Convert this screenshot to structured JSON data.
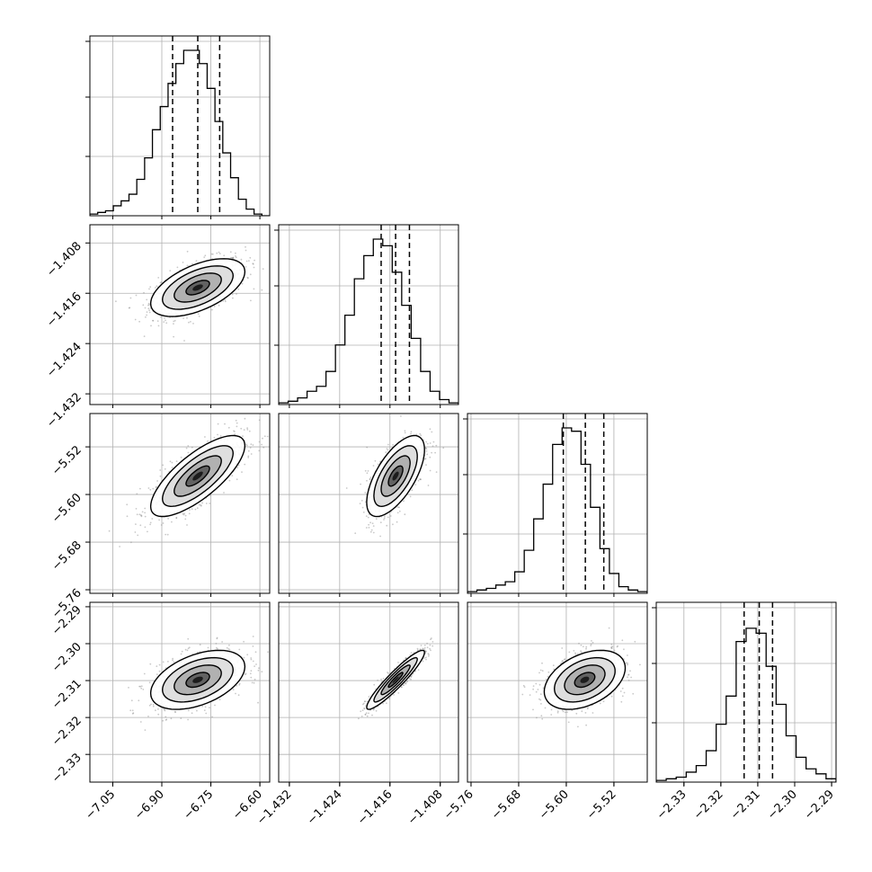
{
  "chart_data": {
    "type": "corner",
    "grid": true,
    "parameters": [
      {
        "range": [
          -7.12,
          -6.57
        ],
        "ticks": [
          "−7.05",
          "−6.90",
          "−6.75",
          "−6.60"
        ],
        "tick_values": [
          -7.05,
          -6.9,
          -6.75,
          -6.6
        ],
        "quantiles": [
          -6.867,
          -6.79,
          -6.723
        ],
        "mean": -6.79,
        "sigma": 0.072
      },
      {
        "range": [
          -1.4337,
          -1.4051
        ],
        "ticks": [
          "−1.432",
          "−1.424",
          "−1.416",
          "−1.408"
        ],
        "tick_values": [
          -1.432,
          -1.424,
          -1.416,
          -1.408
        ],
        "quantiles": [
          -1.4174,
          -1.4151,
          -1.4129
        ],
        "mean": -1.4151,
        "sigma": 0.0023
      },
      {
        "range": [
          -5.766,
          -5.464
        ],
        "ticks": [
          "−5.76",
          "−5.68",
          "−5.60",
          "−5.52"
        ],
        "tick_values": [
          -5.76,
          -5.68,
          -5.6,
          -5.52
        ],
        "quantiles": [
          -5.605,
          -5.568,
          -5.537
        ],
        "mean": -5.569,
        "sigma": 0.034
      },
      {
        "range": [
          -2.3375,
          -2.2888
        ],
        "ticks": [
          "−2.33",
          "−2.32",
          "−2.31",
          "−2.30",
          "−2.29"
        ],
        "tick_values": [
          -2.33,
          -2.32,
          -2.31,
          -2.3,
          -2.29
        ],
        "quantiles": [
          -2.3137,
          -2.3096,
          -2.306
        ],
        "mean": -2.3098,
        "sigma": 0.004
      }
    ],
    "histograms": [
      [
        1,
        2,
        3,
        6,
        9,
        13,
        22,
        35,
        52,
        66,
        80,
        92,
        100,
        100,
        92,
        77,
        57,
        38,
        23,
        10,
        4,
        1,
        0
      ],
      [
        1,
        2,
        4,
        8,
        11,
        20,
        36,
        54,
        76,
        90,
        100,
        96,
        80,
        60,
        40,
        20,
        8,
        3,
        1
      ],
      [
        1,
        2,
        3,
        5,
        7,
        13,
        26,
        45,
        66,
        90,
        100,
        98,
        78,
        52,
        27,
        12,
        4,
        2,
        1
      ],
      [
        1,
        2,
        3,
        6,
        10,
        19,
        35,
        52,
        85,
        93,
        90,
        70,
        47,
        28,
        15,
        8,
        5,
        2
      ]
    ],
    "correlations": {
      "1-0": 0.55,
      "2-0": 0.75,
      "2-1": 0.65,
      "3-0": 0.45,
      "3-1": 0.93,
      "3-2": 0.4
    }
  }
}
